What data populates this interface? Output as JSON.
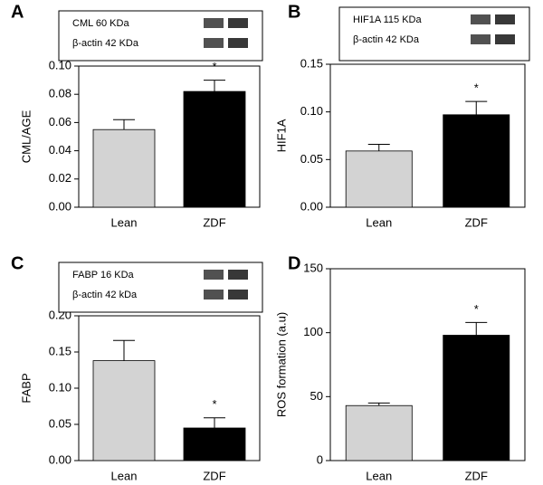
{
  "chart_data": [
    {
      "type": "bar",
      "label": "A",
      "ylabel": "CML/AGE",
      "categories": [
        "Lean",
        "ZDF"
      ],
      "values": [
        0.055,
        0.082
      ],
      "errors": [
        0.007,
        0.008
      ],
      "colors": [
        "#d3d3d3",
        "#000000"
      ],
      "annotation": "*",
      "ylim": [
        0,
        0.1
      ],
      "yticks": [
        {
          "value": 0,
          "label": "0.00"
        },
        {
          "value": 0.02,
          "label": "0.02"
        },
        {
          "value": 0.04,
          "label": "0.04"
        },
        {
          "value": 0.06,
          "label": "0.06"
        },
        {
          "value": 0.08,
          "label": "0.08"
        },
        {
          "value": 0.1,
          "label": "0.10"
        }
      ],
      "blot_labels": [
        "CML 60 KDa",
        "β-actin  42 KDa"
      ]
    },
    {
      "type": "bar",
      "label": "B",
      "ylabel": "HIF1A",
      "categories": [
        "Lean",
        "ZDF"
      ],
      "values": [
        0.059,
        0.097
      ],
      "errors": [
        0.007,
        0.014
      ],
      "colors": [
        "#d3d3d3",
        "#000000"
      ],
      "annotation": "*",
      "ylim": [
        0,
        0.15
      ],
      "yticks": [
        {
          "value": 0,
          "label": "0.00"
        },
        {
          "value": 0.05,
          "label": "0.05"
        },
        {
          "value": 0.1,
          "label": "0.10"
        },
        {
          "value": 0.15,
          "label": "0.15"
        }
      ],
      "blot_labels": [
        "HIF1A 115 KDa",
        "β-actin   42 KDa"
      ]
    },
    {
      "type": "bar",
      "label": "C",
      "ylabel": "FABP",
      "categories": [
        "Lean",
        "ZDF"
      ],
      "values": [
        0.138,
        0.045
      ],
      "errors": [
        0.028,
        0.014
      ],
      "colors": [
        "#d3d3d3",
        "#000000"
      ],
      "annotation": "*",
      "ylim": [
        0,
        0.2
      ],
      "yticks": [
        {
          "value": 0,
          "label": "0.00"
        },
        {
          "value": 0.05,
          "label": "0.05"
        },
        {
          "value": 0.1,
          "label": "0.10"
        },
        {
          "value": 0.15,
          "label": "0.15"
        },
        {
          "value": 0.2,
          "label": "0.20"
        }
      ],
      "blot_labels": [
        "FABP 16 KDa",
        "β-actin  42 kDa"
      ]
    },
    {
      "type": "bar",
      "label": "D",
      "ylabel": "ROS formation (a.u)",
      "categories": [
        "Lean",
        "ZDF"
      ],
      "values": [
        43,
        98
      ],
      "errors": [
        2,
        10
      ],
      "colors": [
        "#d3d3d3",
        "#000000"
      ],
      "annotation": "*",
      "ylim": [
        0,
        150
      ],
      "yticks": [
        0,
        50,
        100,
        150
      ]
    }
  ]
}
